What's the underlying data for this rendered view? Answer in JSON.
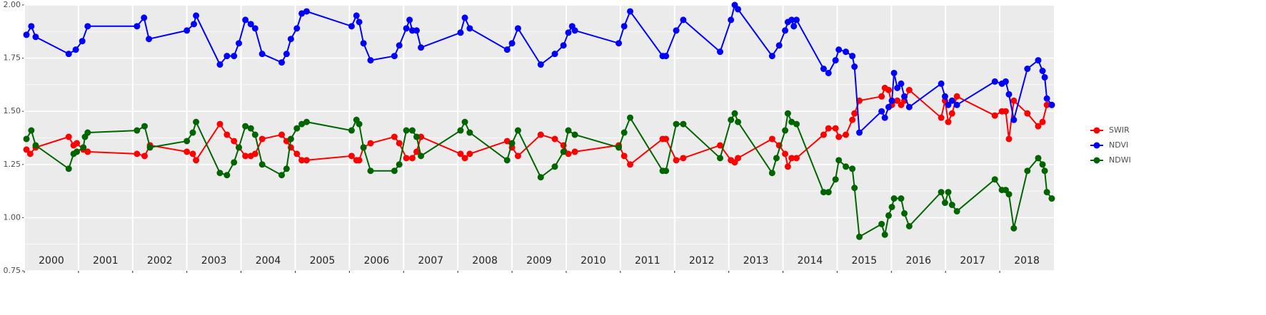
{
  "chart_data": {
    "type": "line",
    "xlim": [
      2000,
      2019
    ],
    "xticks": [
      {
        "value": 2000,
        "label": "2000"
      },
      {
        "value": 2001,
        "label": "2001"
      },
      {
        "value": 2002,
        "label": "2002"
      },
      {
        "value": 2003,
        "label": "2003"
      },
      {
        "value": 2004,
        "label": "2004"
      },
      {
        "value": 2005,
        "label": "2005"
      },
      {
        "value": 2006,
        "label": "2006"
      },
      {
        "value": 2007,
        "label": "2007"
      },
      {
        "value": 2008,
        "label": "2008"
      },
      {
        "value": 2009,
        "label": "2009"
      },
      {
        "value": 2010,
        "label": "2010"
      },
      {
        "value": 2011,
        "label": "2011"
      },
      {
        "value": 2012,
        "label": "2012"
      },
      {
        "value": 2013,
        "label": "2013"
      },
      {
        "value": 2014,
        "label": "2014"
      },
      {
        "value": 2015,
        "label": "2015"
      },
      {
        "value": 2016,
        "label": "2016"
      },
      {
        "value": 2017,
        "label": "2017"
      },
      {
        "value": 2018,
        "label": "2018"
      }
    ],
    "ylim": [
      0.75,
      2.0
    ],
    "yticks": [
      {
        "value": 0.75,
        "label": "0.75"
      },
      {
        "value": 1.0,
        "label": "1.00"
      },
      {
        "value": 1.25,
        "label": "1.25"
      },
      {
        "value": 1.5,
        "label": "1.50"
      },
      {
        "value": 1.75,
        "label": "1.75"
      },
      {
        "value": 2.0,
        "label": "2.00"
      }
    ],
    "grid": true,
    "legend": "right",
    "series": [
      {
        "name": "SWIR",
        "color": "#ff0000",
        "x": [
          2000.04,
          2000.11,
          2000.21,
          2000.82,
          2000.91,
          2000.97,
          2001.09,
          2001.17,
          2002.08,
          2002.22,
          2002.32,
          2003.0,
          2003.11,
          2003.17,
          2003.61,
          2003.74,
          2003.87,
          2003.96,
          2004.08,
          2004.18,
          2004.26,
          2004.39,
          2004.75,
          2004.84,
          2004.92,
          2005.03,
          2005.12,
          2005.21,
          2006.04,
          2006.13,
          2006.18,
          2006.26,
          2006.39,
          2006.83,
          2006.92,
          2007.05,
          2007.16,
          2007.24,
          2007.32,
          2008.05,
          2008.13,
          2008.22,
          2008.91,
          2009.0,
          2009.11,
          2009.53,
          2009.79,
          2009.95,
          2010.04,
          2010.16,
          2010.97,
          2011.07,
          2011.18,
          2011.78,
          2011.84,
          2012.03,
          2012.16,
          2012.84,
          2013.04,
          2013.11,
          2013.17,
          2013.8,
          2013.93,
          2014.04,
          2014.09,
          2014.16,
          2014.25,
          2014.75,
          2014.84,
          2014.97,
          2015.03,
          2015.16,
          2015.28,
          2015.32,
          2015.41,
          2015.82,
          2015.88,
          2015.95,
          2016.01,
          2016.11,
          2016.18,
          2016.24,
          2016.33,
          2016.92,
          2016.99,
          2017.05,
          2017.12,
          2017.21,
          2017.91,
          2018.04,
          2018.11,
          2018.17,
          2018.26,
          2018.51,
          2018.71,
          2018.79,
          2018.87,
          2018.96
        ],
        "values": [
          1.32,
          1.3,
          1.33,
          1.38,
          1.34,
          1.35,
          1.32,
          1.31,
          1.3,
          1.29,
          1.34,
          1.31,
          1.3,
          1.27,
          1.44,
          1.39,
          1.36,
          1.33,
          1.29,
          1.29,
          1.3,
          1.37,
          1.39,
          1.36,
          1.33,
          1.3,
          1.27,
          1.27,
          1.29,
          1.27,
          1.27,
          1.33,
          1.35,
          1.38,
          1.35,
          1.28,
          1.28,
          1.31,
          1.38,
          1.3,
          1.28,
          1.3,
          1.36,
          1.33,
          1.29,
          1.39,
          1.37,
          1.34,
          1.3,
          1.31,
          1.34,
          1.29,
          1.25,
          1.37,
          1.37,
          1.27,
          1.28,
          1.34,
          1.27,
          1.26,
          1.28,
          1.37,
          1.34,
          1.3,
          1.24,
          1.28,
          1.28,
          1.39,
          1.42,
          1.42,
          1.38,
          1.39,
          1.46,
          1.49,
          1.55,
          1.57,
          1.61,
          1.6,
          1.53,
          1.55,
          1.53,
          1.55,
          1.6,
          1.47,
          1.55,
          1.45,
          1.49,
          1.57,
          1.48,
          1.5,
          1.5,
          1.37,
          1.55,
          1.49,
          1.43,
          1.45,
          1.53,
          1.53
        ]
      },
      {
        "name": "NDVI",
        "color": "#0000ff",
        "x": [
          2000.04,
          2000.13,
          2000.21,
          2000.82,
          2000.95,
          2001.07,
          2001.17,
          2002.08,
          2002.21,
          2002.3,
          2003.0,
          2003.13,
          2003.17,
          2003.61,
          2003.74,
          2003.87,
          2003.96,
          2004.08,
          2004.18,
          2004.26,
          2004.39,
          2004.75,
          2004.84,
          2004.92,
          2005.03,
          2005.12,
          2005.21,
          2006.04,
          2006.13,
          2006.18,
          2006.26,
          2006.39,
          2006.83,
          2006.92,
          2007.05,
          2007.11,
          2007.16,
          2007.24,
          2007.32,
          2008.05,
          2008.13,
          2008.22,
          2008.91,
          2009.0,
          2009.11,
          2009.53,
          2009.79,
          2009.95,
          2010.04,
          2010.11,
          2010.16,
          2010.97,
          2011.07,
          2011.18,
          2011.78,
          2011.84,
          2012.03,
          2012.16,
          2012.84,
          2013.04,
          2013.11,
          2013.17,
          2013.8,
          2013.93,
          2014.04,
          2014.09,
          2014.16,
          2014.2,
          2014.25,
          2014.75,
          2014.84,
          2014.97,
          2015.03,
          2015.16,
          2015.28,
          2015.32,
          2015.41,
          2015.82,
          2015.88,
          2015.95,
          2016.01,
          2016.05,
          2016.11,
          2016.18,
          2016.24,
          2016.33,
          2016.92,
          2016.99,
          2017.05,
          2017.12,
          2017.21,
          2017.91,
          2018.04,
          2018.11,
          2018.17,
          2018.26,
          2018.51,
          2018.71,
          2018.79,
          2018.83,
          2018.87,
          2018.96
        ],
        "values": [
          1.86,
          1.9,
          1.85,
          1.77,
          1.79,
          1.83,
          1.9,
          1.9,
          1.94,
          1.84,
          1.88,
          1.91,
          1.95,
          1.72,
          1.76,
          1.76,
          1.82,
          1.93,
          1.91,
          1.89,
          1.77,
          1.73,
          1.77,
          1.84,
          1.89,
          1.96,
          1.97,
          1.9,
          1.95,
          1.92,
          1.82,
          1.74,
          1.76,
          1.81,
          1.89,
          1.93,
          1.88,
          1.88,
          1.8,
          1.87,
          1.94,
          1.89,
          1.79,
          1.82,
          1.89,
          1.72,
          1.77,
          1.81,
          1.87,
          1.9,
          1.88,
          1.82,
          1.9,
          1.97,
          1.76,
          1.76,
          1.88,
          1.93,
          1.78,
          1.93,
          2.0,
          1.98,
          1.76,
          1.81,
          1.88,
          1.92,
          1.93,
          1.9,
          1.93,
          1.7,
          1.68,
          1.74,
          1.79,
          1.78,
          1.76,
          1.71,
          1.4,
          1.5,
          1.47,
          1.52,
          1.55,
          1.68,
          1.61,
          1.63,
          1.57,
          1.52,
          1.63,
          1.57,
          1.53,
          1.55,
          1.53,
          1.64,
          1.63,
          1.64,
          1.58,
          1.46,
          1.7,
          1.74,
          1.69,
          1.66,
          1.56,
          1.53
        ]
      },
      {
        "name": "NDWI",
        "color": "#006400",
        "x": [
          2000.04,
          2000.13,
          2000.21,
          2000.82,
          2000.91,
          2000.97,
          2001.09,
          2001.12,
          2001.17,
          2002.08,
          2002.22,
          2002.32,
          2003.0,
          2003.11,
          2003.17,
          2003.61,
          2003.74,
          2003.87,
          2003.96,
          2004.08,
          2004.18,
          2004.26,
          2004.39,
          2004.75,
          2004.84,
          2004.92,
          2005.03,
          2005.12,
          2005.21,
          2006.04,
          2006.13,
          2006.18,
          2006.26,
          2006.39,
          2006.83,
          2006.92,
          2007.05,
          2007.16,
          2007.24,
          2007.32,
          2008.05,
          2008.13,
          2008.22,
          2008.91,
          2009.0,
          2009.11,
          2009.53,
          2009.79,
          2009.95,
          2010.04,
          2010.16,
          2010.97,
          2011.07,
          2011.18,
          2011.78,
          2011.84,
          2012.03,
          2012.16,
          2012.84,
          2013.04,
          2013.11,
          2013.17,
          2013.8,
          2013.88,
          2014.04,
          2014.09,
          2014.16,
          2014.25,
          2014.75,
          2014.84,
          2014.97,
          2015.03,
          2015.16,
          2015.28,
          2015.32,
          2015.41,
          2015.82,
          2015.88,
          2015.95,
          2016.01,
          2016.05,
          2016.18,
          2016.24,
          2016.33,
          2016.92,
          2016.99,
          2017.05,
          2017.12,
          2017.21,
          2017.91,
          2018.04,
          2018.11,
          2018.17,
          2018.26,
          2018.51,
          2018.71,
          2018.79,
          2018.83,
          2018.87,
          2018.96
        ],
        "values": [
          1.37,
          1.41,
          1.34,
          1.23,
          1.3,
          1.31,
          1.33,
          1.38,
          1.4,
          1.41,
          1.43,
          1.33,
          1.36,
          1.4,
          1.45,
          1.21,
          1.2,
          1.26,
          1.33,
          1.43,
          1.42,
          1.39,
          1.25,
          1.2,
          1.23,
          1.37,
          1.42,
          1.44,
          1.45,
          1.41,
          1.46,
          1.44,
          1.33,
          1.22,
          1.22,
          1.25,
          1.41,
          1.41,
          1.38,
          1.29,
          1.41,
          1.45,
          1.4,
          1.27,
          1.35,
          1.41,
          1.19,
          1.24,
          1.31,
          1.41,
          1.39,
          1.33,
          1.4,
          1.47,
          1.22,
          1.22,
          1.44,
          1.44,
          1.28,
          1.46,
          1.49,
          1.45,
          1.21,
          1.28,
          1.41,
          1.49,
          1.45,
          1.44,
          1.12,
          1.12,
          1.18,
          1.27,
          1.24,
          1.23,
          1.14,
          0.91,
          0.97,
          0.92,
          1.01,
          1.05,
          1.09,
          1.09,
          1.02,
          0.96,
          1.12,
          1.07,
          1.12,
          1.06,
          1.03,
          1.18,
          1.13,
          1.13,
          1.11,
          0.95,
          1.22,
          1.28,
          1.25,
          1.22,
          1.12,
          1.09
        ]
      }
    ]
  }
}
